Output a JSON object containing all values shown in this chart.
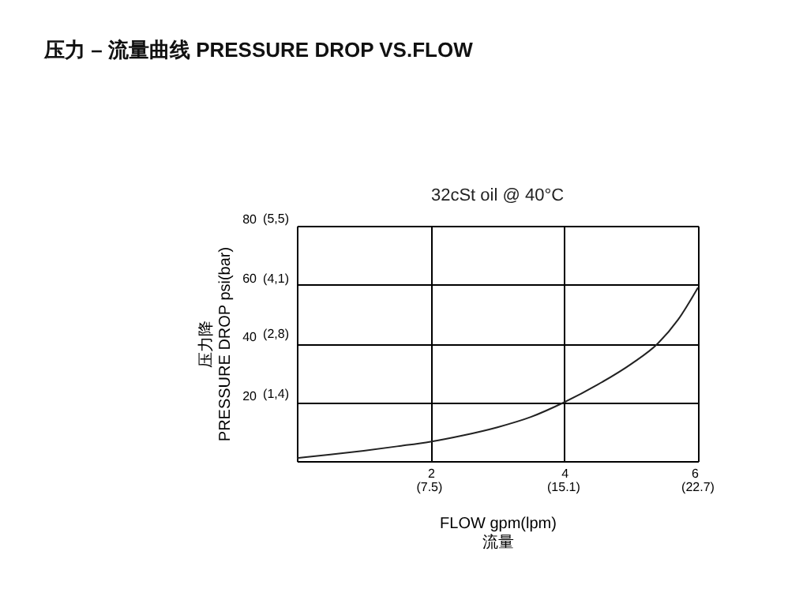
{
  "chart_data": {
    "type": "line",
    "title": "压力 – 流量曲线 PRESSURE DROP VS.FLOW",
    "subtitle": "32cSt oil @ 40°C",
    "xlabel": "FLOW gpm(lpm)\n流量",
    "ylabel": "压力降\nPRESSURE DROP psi(bar)",
    "x": [
      0,
      0.5,
      1,
      1.5,
      2,
      2.5,
      3,
      3.5,
      4,
      4.5,
      5,
      5.4,
      5.7,
      6
    ],
    "series": [
      {
        "color": "#222222",
        "values": [
          1,
          2.2,
          3.5,
          5,
          6.6,
          8.8,
          11.5,
          15,
          20,
          26,
          33,
          40,
          48,
          59
        ]
      }
    ],
    "xlim": [
      0,
      6
    ],
    "ylim": [
      0,
      80
    ],
    "xticks": [
      {
        "value": 0,
        "label": null
      },
      2,
      4,
      6
    ],
    "yticks": [
      {
        "value": 0,
        "label": null
      },
      20,
      40,
      60,
      80
    ],
    "x2lim": [
      0,
      22.7
    ],
    "x2ticks": [
      {
        "value": 7.5,
        "label": "(7.5)"
      },
      {
        "value": 15.1,
        "label": "(15.1)"
      },
      {
        "value": 22.7,
        "label": "(22.7)"
      }
    ],
    "y2lim": [
      0,
      5.5
    ],
    "y2ticks": [
      {
        "value": 1.4,
        "label": "(1,4)"
      },
      {
        "value": 2.8,
        "label": "(2,8)"
      },
      {
        "value": 4.1,
        "label": "(4,1)"
      },
      {
        "value": 5.5,
        "label": "(5,5)"
      }
    ],
    "grid": true,
    "line_style": "solid",
    "marker": "none"
  }
}
